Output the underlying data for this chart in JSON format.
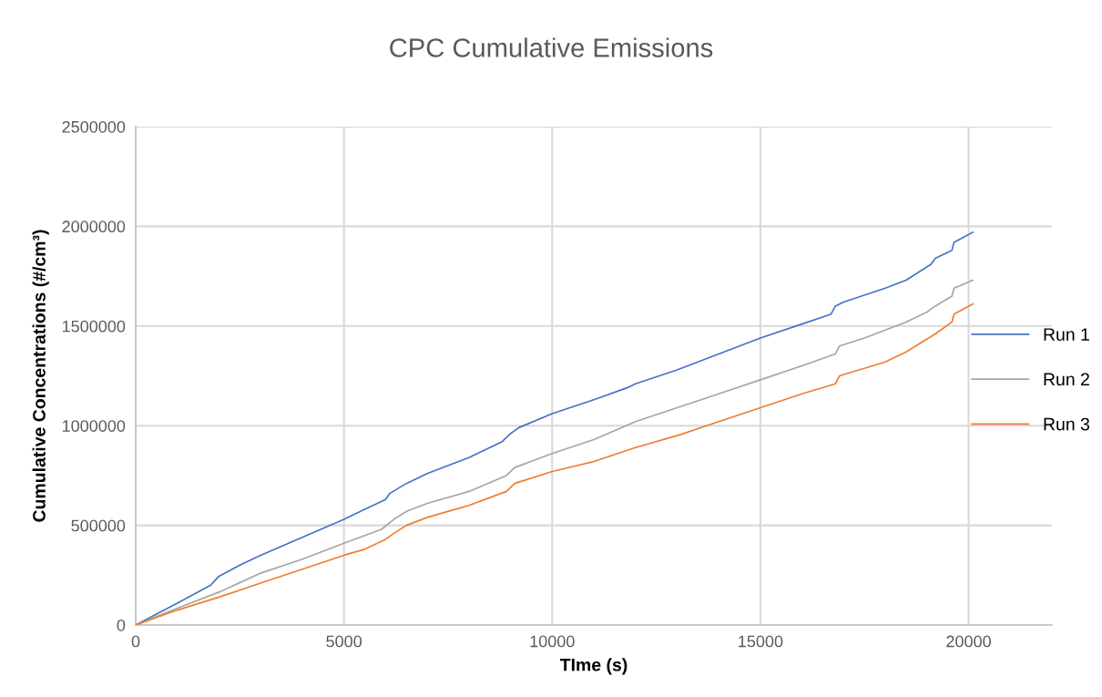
{
  "chart_data": {
    "type": "line",
    "title": "CPC Cumulative Emissions",
    "xlabel": "TIme (s)",
    "ylabel": "Cumulative Concentrations (#/cm³)",
    "xlim": [
      0,
      22000
    ],
    "xticks": [
      0,
      5000,
      10000,
      15000,
      20000
    ],
    "ylim": [
      0,
      2500000
    ],
    "yticks": [
      0,
      500000,
      1000000,
      1500000,
      2000000,
      2500000
    ],
    "grid": true,
    "legend": "right",
    "marker": "none",
    "line_style": "solid",
    "series": [
      {
        "name": "Run 1",
        "color": "#4472c4",
        "x": [
          0,
          1000,
          1800,
          2000,
          2500,
          3000,
          4000,
          5000,
          5500,
          6000,
          6100,
          6500,
          7000,
          8000,
          8800,
          9000,
          9200,
          10000,
          11000,
          11800,
          12000,
          13000,
          14000,
          15000,
          16000,
          16700,
          16800,
          17000,
          18000,
          18500,
          19100,
          19200,
          19600,
          19650,
          20100
        ],
        "values": [
          0,
          110000,
          200000,
          245000,
          300000,
          350000,
          440000,
          530000,
          580000,
          630000,
          660000,
          710000,
          760000,
          840000,
          920000,
          960000,
          990000,
          1060000,
          1130000,
          1190000,
          1210000,
          1280000,
          1360000,
          1440000,
          1510000,
          1560000,
          1600000,
          1620000,
          1690000,
          1730000,
          1810000,
          1840000,
          1880000,
          1920000,
          1970000
        ]
      },
      {
        "name": "Run 2",
        "color": "#a5a5a5",
        "x": [
          0,
          1000,
          2000,
          3000,
          4000,
          5000,
          5900,
          6200,
          6500,
          7000,
          8000,
          8900,
          9100,
          10000,
          11000,
          12000,
          13000,
          14000,
          15000,
          16000,
          16800,
          16900,
          17500,
          18500,
          19000,
          19200,
          19600,
          19650,
          20100
        ],
        "values": [
          0,
          85000,
          165000,
          260000,
          330000,
          410000,
          480000,
          530000,
          570000,
          610000,
          670000,
          750000,
          790000,
          860000,
          930000,
          1020000,
          1090000,
          1160000,
          1230000,
          1300000,
          1360000,
          1400000,
          1440000,
          1520000,
          1570000,
          1600000,
          1650000,
          1690000,
          1730000
        ]
      },
      {
        "name": "Run 3",
        "color": "#ed7d31",
        "x": [
          0,
          1000,
          2000,
          3000,
          4000,
          5000,
          5500,
          6000,
          6200,
          6500,
          7000,
          8000,
          8900,
          9100,
          10000,
          11000,
          12000,
          13000,
          14000,
          15000,
          16000,
          16800,
          16900,
          18000,
          18500,
          19200,
          19600,
          19650,
          20100
        ],
        "values": [
          0,
          75000,
          140000,
          210000,
          280000,
          350000,
          380000,
          430000,
          460000,
          500000,
          540000,
          600000,
          670000,
          710000,
          770000,
          820000,
          890000,
          950000,
          1020000,
          1090000,
          1160000,
          1210000,
          1250000,
          1320000,
          1370000,
          1460000,
          1520000,
          1560000,
          1610000
        ]
      }
    ]
  }
}
